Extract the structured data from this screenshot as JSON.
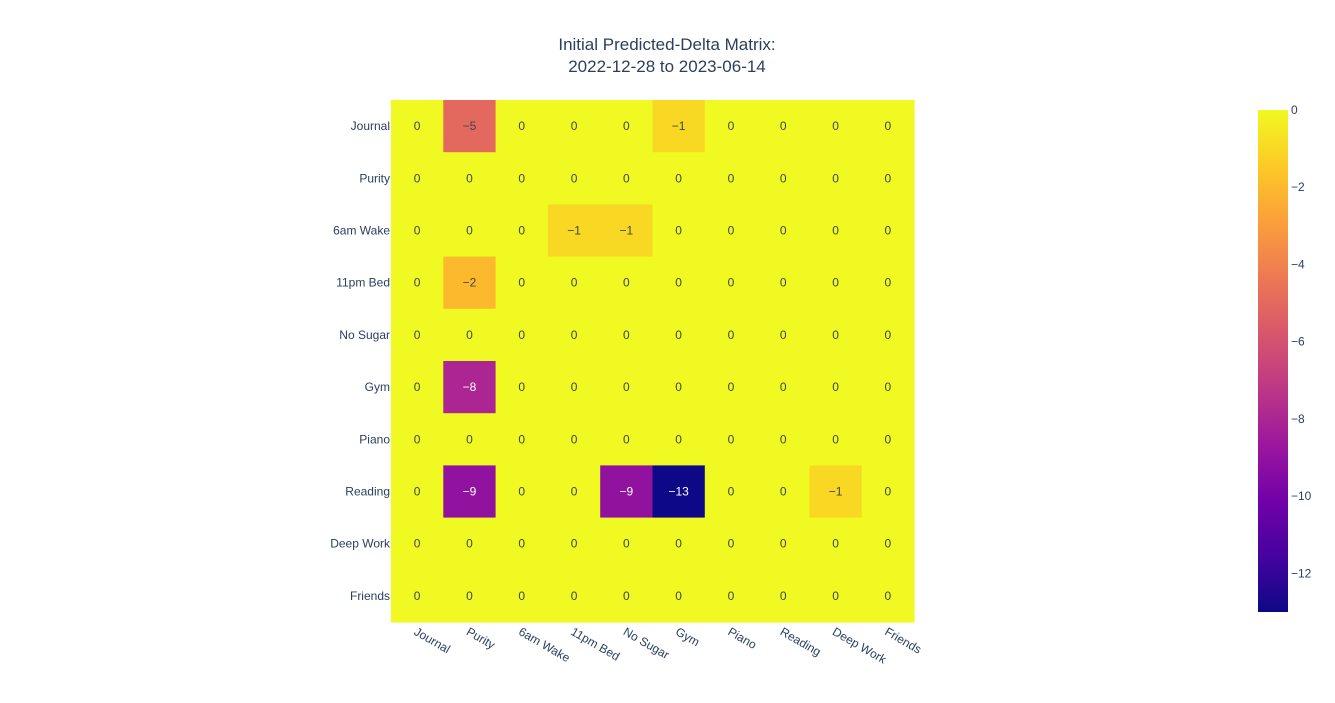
{
  "chart_data": {
    "type": "heatmap",
    "title_line1": "Initial Predicted-Delta Matrix:",
    "title_line2": "2022-12-28 to 2023-06-14",
    "x_categories": [
      "Journal",
      "Purity",
      "6am Wake",
      "11pm Bed",
      "No Sugar",
      "Gym",
      "Piano",
      "Reading",
      "Deep Work",
      "Friends"
    ],
    "y_categories": [
      "Journal",
      "Purity",
      "6am Wake",
      "11pm Bed",
      "No Sugar",
      "Gym",
      "Piano",
      "Reading",
      "Deep Work",
      "Friends"
    ],
    "z": [
      [
        0,
        -5,
        0,
        0,
        0,
        -1,
        0,
        0,
        0,
        0
      ],
      [
        0,
        0,
        0,
        0,
        0,
        0,
        0,
        0,
        0,
        0
      ],
      [
        0,
        0,
        0,
        -1,
        -1,
        0,
        0,
        0,
        0,
        0
      ],
      [
        0,
        -2,
        0,
        0,
        0,
        0,
        0,
        0,
        0,
        0
      ],
      [
        0,
        0,
        0,
        0,
        0,
        0,
        0,
        0,
        0,
        0
      ],
      [
        0,
        -8,
        0,
        0,
        0,
        0,
        0,
        0,
        0,
        0
      ],
      [
        0,
        0,
        0,
        0,
        0,
        0,
        0,
        0,
        0,
        0
      ],
      [
        0,
        -9,
        0,
        0,
        -9,
        -13,
        0,
        0,
        -1,
        0
      ],
      [
        0,
        0,
        0,
        0,
        0,
        0,
        0,
        0,
        0,
        0
      ],
      [
        0,
        0,
        0,
        0,
        0,
        0,
        0,
        0,
        0,
        0
      ]
    ],
    "zmin": -13,
    "zmax": 0,
    "colorscale": "Plasma",
    "colorbar_ticks": [
      0,
      -2,
      -4,
      -6,
      -8,
      -10,
      -12
    ],
    "colorbar_tick_labels": [
      "0",
      "−2",
      "−4",
      "−6",
      "−8",
      "−10",
      "−12"
    ],
    "x_tick_angle_deg": 30,
    "legend": "colorbar-right"
  }
}
